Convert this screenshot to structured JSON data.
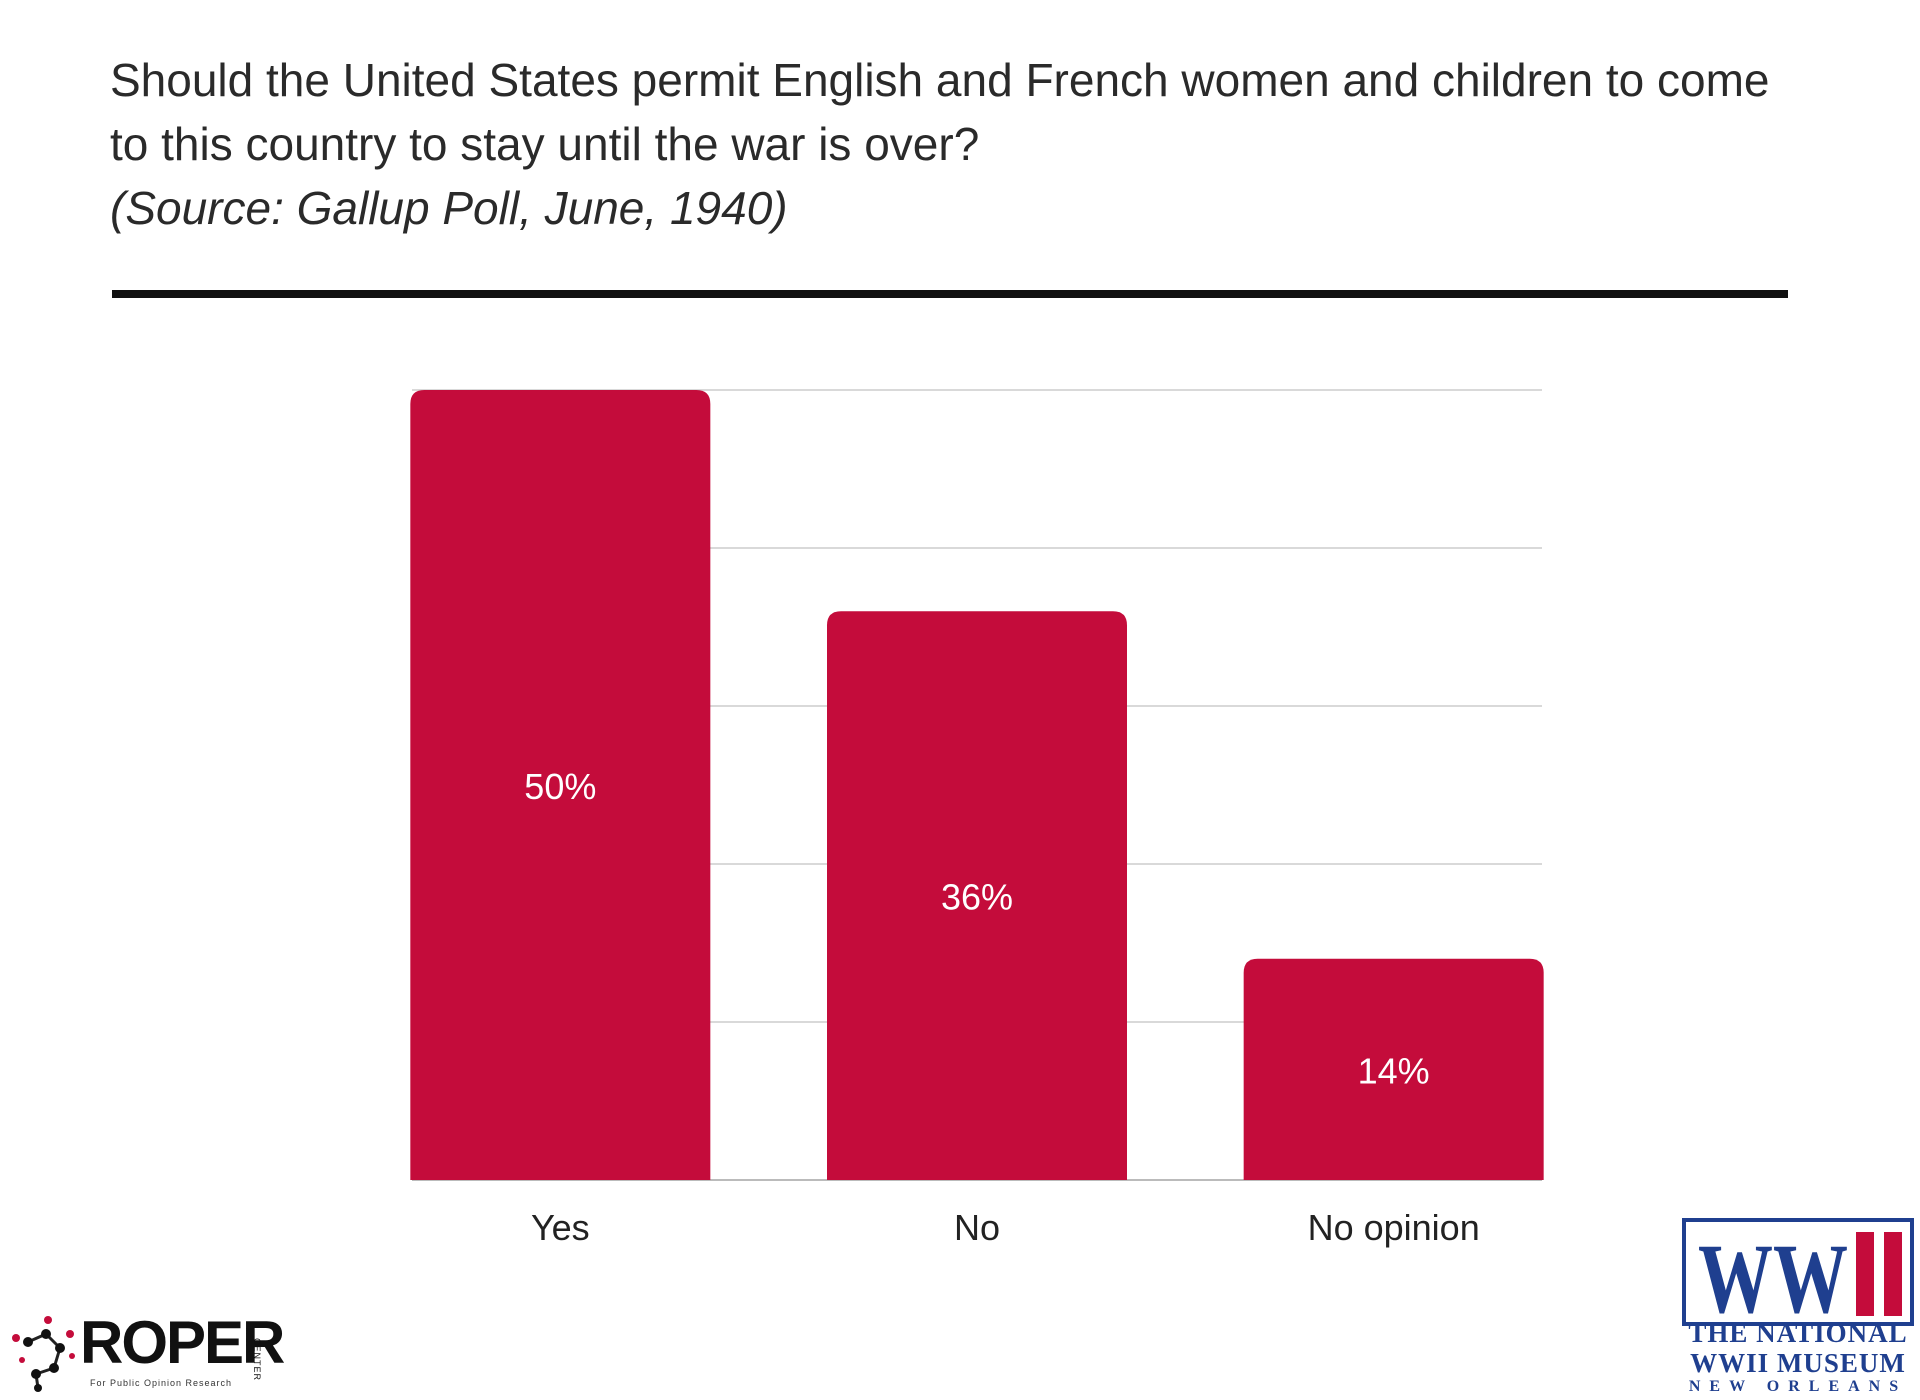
{
  "header": {
    "question_line1": "Should the United States permit English and French women and children to come",
    "question_line2": "to this country to stay until the war is over?",
    "source": "(Source: Gallup Poll, June, 1940)"
  },
  "chart_data": {
    "type": "bar",
    "title": "",
    "xlabel": "",
    "ylabel": "",
    "categories": [
      "Yes",
      "No",
      "No opinion"
    ],
    "values": [
      50,
      36,
      14
    ],
    "data_labels": [
      "50%",
      "36%",
      "14%"
    ],
    "ylim": [
      0,
      50
    ],
    "grid": true,
    "bar_color": "#c40c3b"
  },
  "logos": {
    "roper": {
      "name": "ROPER",
      "side_text": "CENTER",
      "tagline": "For Public Opinion Research"
    },
    "museum": {
      "mark": "WWII",
      "line1": "THE NATIONAL",
      "line2": "WWII MUSEUM",
      "line3": "NEW ORLEANS",
      "color": "#1f3f8f",
      "accent": "#c40c3b"
    }
  }
}
